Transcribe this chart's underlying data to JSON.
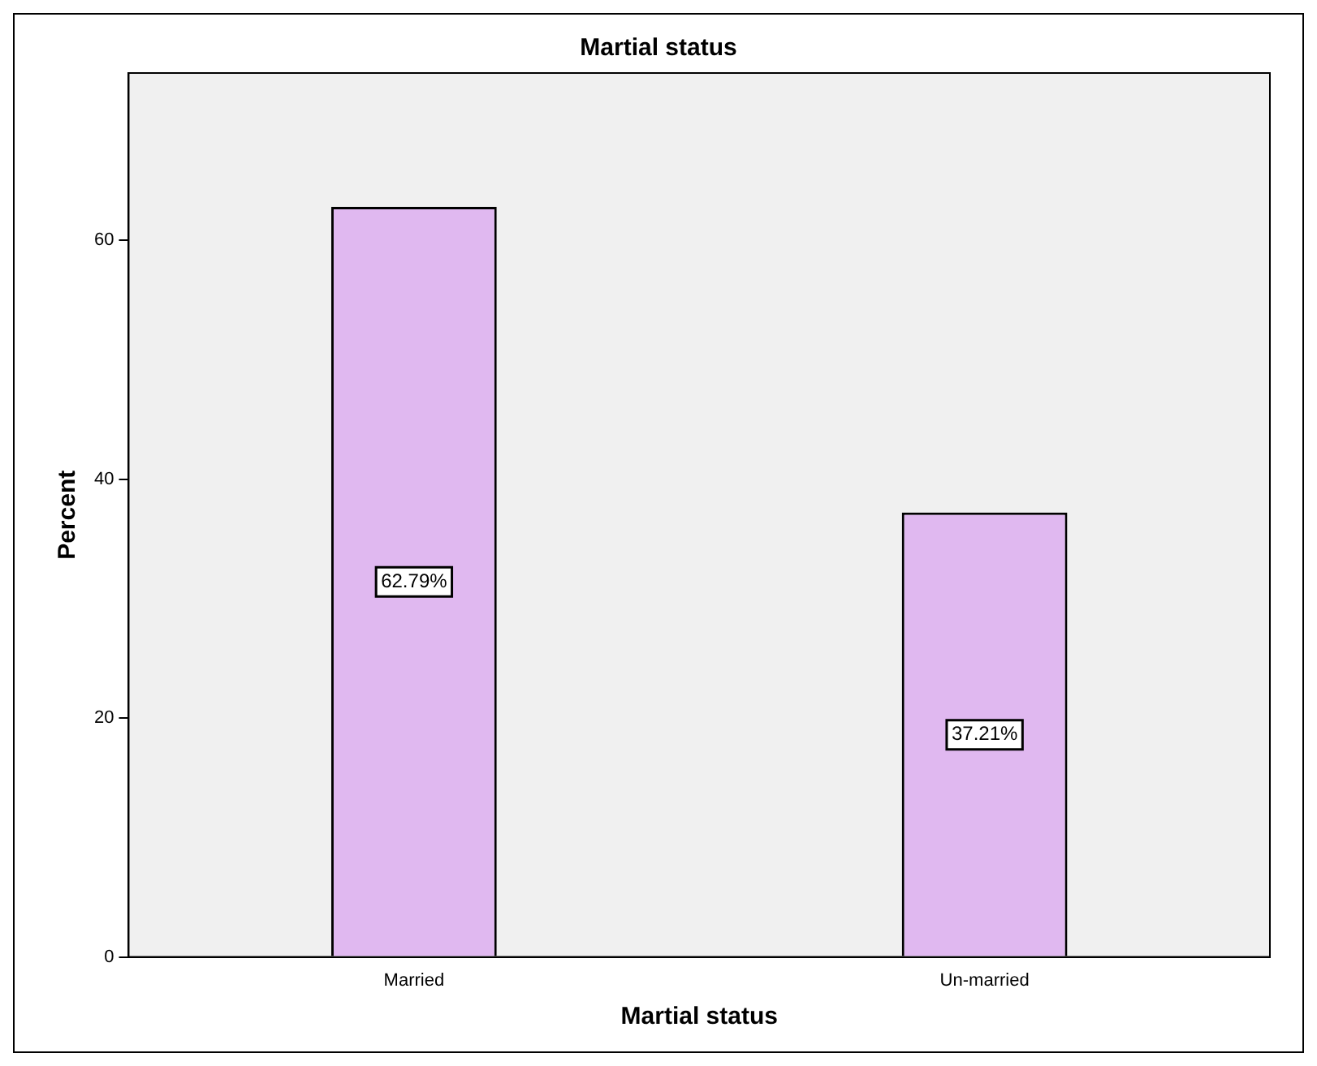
{
  "chart_data": {
    "type": "bar",
    "title": "Martial status",
    "xlabel": "Martial status",
    "ylabel": "Percent",
    "categories": [
      "Married",
      "Un-married"
    ],
    "values": [
      62.79,
      37.21
    ],
    "value_labels": [
      "62.79%",
      "37.21%"
    ],
    "color": "#e0b8f0",
    "ylim": [
      0,
      74
    ],
    "yticks": [
      0,
      20,
      40,
      60
    ],
    "grid": false,
    "legend": false
  }
}
